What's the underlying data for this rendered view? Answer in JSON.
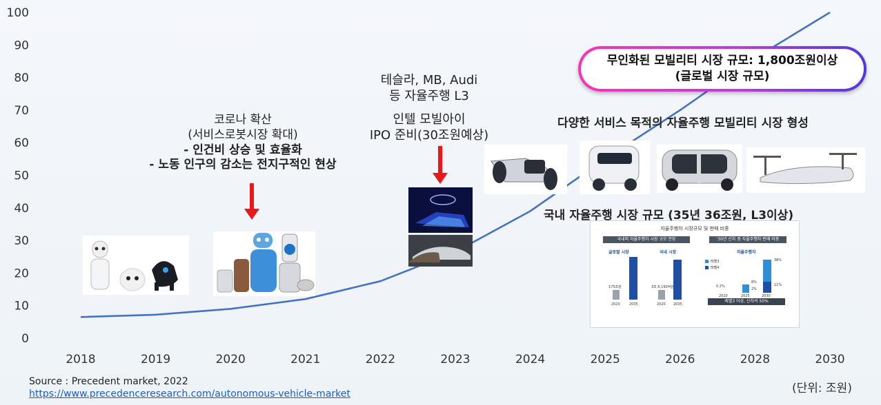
{
  "chart_data": {
    "type": "line",
    "categories": [
      "2018",
      "2019",
      "2020",
      "2021",
      "2022",
      "2023",
      "2024",
      "2025",
      "2026",
      "2028",
      "2030"
    ],
    "series": [
      {
        "values": [
          6.5,
          7.2,
          9.0,
          12.0,
          17.5,
          26.5,
          39.0,
          55.0,
          70.0,
          86.0,
          100.0
        ],
        "color": "#4472c4"
      }
    ],
    "yticks": [
      0,
      10,
      20,
      30,
      40,
      50,
      60,
      70,
      80,
      90,
      100
    ],
    "ylim": [
      0,
      100
    ],
    "grid": false,
    "title": "",
    "xlabel": "",
    "ylabel": ""
  },
  "annotations": {
    "covid": {
      "line1": "코로나 확산",
      "line2": "(서비스로봇시장 확대)",
      "line3": "-  인건비 상승 및 효율화",
      "line4": "-  노동 인구의 감소는 전지구적인 현상"
    },
    "tesla": {
      "line1": "테슬라, MB, Audi",
      "line2": "등 자율주행 L3"
    },
    "intel": {
      "line1": "인텔 모빌아이",
      "line2": "IPO 준비(30조원예상)"
    },
    "diverse": "다양한 서비스 목적의 자율주행 모빌리티 시장 형성",
    "domestic": "국내 자율주행 시장 규모 (35년 36조원, L3이상)",
    "callout": {
      "line1": "무인화된 모빌리티 시장 규모: 1,800조원이상",
      "line2": "(글로벌 시장 규모)"
    }
  },
  "report": {
    "title": "자율주행차 시장규모 및 판매 비중",
    "left_header": "국내외 자율주행차 시장 규모 전망",
    "right_header": "'30년 신차 중 자율주행차 판매 비중",
    "global": "글로벌 시장",
    "domestic": "국내 시장",
    "autonomous": "자율주행차",
    "v_global_2020": "175조원",
    "v_domestic_2020": "3조 6,193억원",
    "legend_l3": "레벨3",
    "legend_l4": "레벨4",
    "p1": "0.2%",
    "p2": "8%",
    "p3": "2%",
    "p4": "38%",
    "p5": "11%",
    "year_a": "2020",
    "year_b": "2035",
    "year_c": "2020",
    "year_d": "2035",
    "year_e": "2020",
    "year_f": "2025",
    "year_g": "2030",
    "footer": "레벨3 이상, 신차의 50%"
  },
  "source": {
    "line1": "Source : Precedent market, 2022",
    "url": "https://www.precedenceresearch.com/autonomous-vehicle-market"
  },
  "unit": "(단위: 조원)",
  "colors": {
    "line": "#4472c4",
    "arrow": "#e8181b",
    "accent_pink": "#ff2fb5",
    "accent_blue": "#4f37e0"
  }
}
